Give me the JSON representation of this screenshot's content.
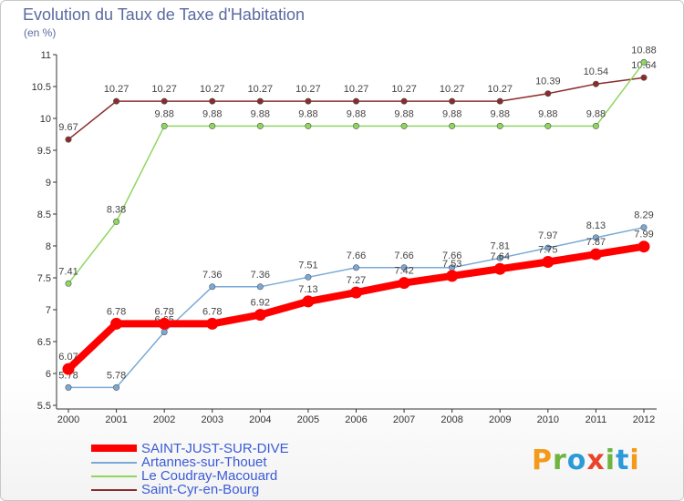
{
  "header": {
    "title": "Evolution du Taux de Taxe d'Habitation",
    "unit": "(en %)"
  },
  "chart_data": {
    "type": "line",
    "title": "Evolution du Taux de Taxe d'Habitation",
    "ylabel": "(en %)",
    "xlabel": "",
    "categories": [
      "2000",
      "2001",
      "2002",
      "2003",
      "2004",
      "2005",
      "2006",
      "2007",
      "2008",
      "2009",
      "2010",
      "2011",
      "2012"
    ],
    "ylim": [
      5.5,
      11
    ],
    "yticks": [
      "5.5",
      "6",
      "6.5",
      "7",
      "7.5",
      "8",
      "8.5",
      "9",
      "9.5",
      "10",
      "10.5",
      "11"
    ],
    "grid": false,
    "series": [
      {
        "name": "Saint-Cyr-en-Bourg",
        "color": "#8b2b2b",
        "values": [
          9.67,
          10.27,
          10.27,
          10.27,
          10.27,
          10.27,
          10.27,
          10.27,
          10.27,
          10.27,
          10.39,
          10.54,
          10.64
        ],
        "labels": [
          "9.67",
          "10.27",
          "10.27",
          "10.27",
          "10.27",
          "10.27",
          "10.27",
          "10.27",
          "10.27",
          "10.27",
          "10.39",
          "10.54",
          "10.64"
        ]
      },
      {
        "name": "Le Coudray-Macouard",
        "color": "#8ed65e",
        "values": [
          7.41,
          8.38,
          9.88,
          9.88,
          9.88,
          9.88,
          9.88,
          9.88,
          9.88,
          9.88,
          9.88,
          9.88,
          10.88
        ],
        "labels": [
          "7.41",
          "8.38",
          "9.88",
          "9.88",
          "9.88",
          "9.88",
          "9.88",
          "9.88",
          "9.88",
          "9.88",
          "9.88",
          "9.88",
          "10.88"
        ]
      },
      {
        "name": "Artannes-sur-Thouet",
        "color": "#7aa9d6",
        "values": [
          5.78,
          5.78,
          6.65,
          7.36,
          7.36,
          7.51,
          7.66,
          7.66,
          7.66,
          7.81,
          7.97,
          8.13,
          8.29
        ],
        "labels": [
          "5.78",
          "5.78",
          "6.65",
          "7.36",
          "7.36",
          "7.51",
          "7.66",
          "7.66",
          "7.66",
          "7.81",
          "7.97",
          "8.13",
          "8.29"
        ]
      },
      {
        "name": "SAINT-JUST-SUR-DIVE",
        "color": "#ff0000",
        "values": [
          6.07,
          6.78,
          6.78,
          6.78,
          6.92,
          7.13,
          7.27,
          7.42,
          7.53,
          7.64,
          7.75,
          7.87,
          7.99
        ],
        "labels": [
          "6.07",
          "6.78",
          "6.78",
          "6.78",
          "6.92",
          "7.13",
          "7.27",
          "7.42",
          "7.53",
          "7.64",
          "7.75",
          "7.87",
          "7.99"
        ]
      }
    ]
  },
  "legend": [
    {
      "label": "SAINT-JUST-SUR-DIVE",
      "color": "#ff0000"
    },
    {
      "label": "Artannes-sur-Thouet",
      "color": "#7aa9d6"
    },
    {
      "label": "Le Coudray-Macouard",
      "color": "#8ed65e"
    },
    {
      "label": "Saint-Cyr-en-Bourg",
      "color": "#8b2b2b"
    }
  ],
  "logo": {
    "letters": [
      "P",
      "r",
      "o",
      "x",
      "i",
      "t",
      "i"
    ]
  }
}
